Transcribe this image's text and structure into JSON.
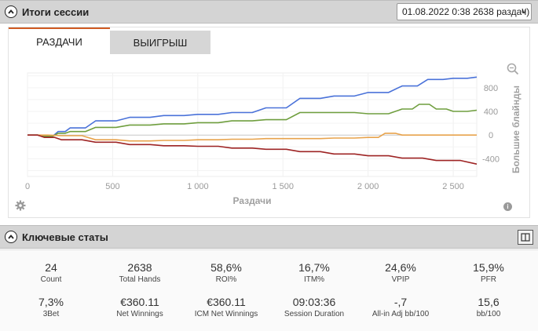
{
  "header": {
    "title": "Итоги сессии",
    "session_select": "01.08.2022 0:38 2638 раздач)",
    "caret": "v"
  },
  "tabs": [
    {
      "label": "РАЗДАЧИ",
      "active": true
    },
    {
      "label": "ВЫИГРЫШ",
      "active": false
    }
  ],
  "chart_data": {
    "type": "line",
    "xlabel": "Раздачи",
    "ylabel": "Большие блайнды",
    "x_ticks": [
      "0",
      "500",
      "1 000",
      "1 500",
      "2 000",
      "2 500"
    ],
    "y_ticks": [
      "800",
      "400",
      "0",
      "-400"
    ],
    "xlim": [
      0,
      2638
    ],
    "ylim": [
      -700,
      1050
    ],
    "grid": true,
    "series": [
      {
        "color": "#4a72d9",
        "x": [
          0,
          100,
          180,
          250,
          400,
          600,
          800,
          1000,
          1200,
          1400,
          1600,
          1800,
          2000,
          2200,
          2350,
          2500,
          2638
        ],
        "y": [
          0,
          -20,
          60,
          120,
          240,
          300,
          330,
          350,
          380,
          460,
          620,
          660,
          720,
          830,
          940,
          960,
          980
        ]
      },
      {
        "color": "#6f9e3e",
        "x": [
          0,
          100,
          180,
          250,
          400,
          600,
          800,
          1000,
          1200,
          1400,
          1600,
          1800,
          2000,
          2200,
          2300,
          2400,
          2500,
          2638
        ],
        "y": [
          0,
          -20,
          30,
          60,
          130,
          170,
          190,
          210,
          240,
          260,
          380,
          380,
          360,
          440,
          520,
          440,
          400,
          420
        ]
      },
      {
        "color": "#e8a34c",
        "x": [
          0,
          200,
          400,
          600,
          800,
          1000,
          1200,
          1400,
          1600,
          1800,
          2000,
          2100,
          2200,
          2400,
          2638
        ],
        "y": [
          0,
          -10,
          -80,
          -100,
          -90,
          -80,
          -70,
          -60,
          -60,
          -50,
          -40,
          30,
          0,
          0,
          0
        ]
      },
      {
        "color": "#9e2424",
        "x": [
          0,
          100,
          200,
          400,
          600,
          800,
          1000,
          1200,
          1400,
          1600,
          1800,
          2000,
          2200,
          2400,
          2638
        ],
        "y": [
          0,
          -40,
          -80,
          -120,
          -160,
          -180,
          -190,
          -220,
          -240,
          -280,
          -320,
          -350,
          -390,
          -430,
          -490
        ]
      }
    ]
  },
  "key_stats": {
    "title": "Ключевые статы",
    "items": [
      {
        "value": "24",
        "label": "Count"
      },
      {
        "value": "2638",
        "label": "Total Hands"
      },
      {
        "value": "58,6%",
        "label": "ROI%"
      },
      {
        "value": "16,7%",
        "label": "ITM%"
      },
      {
        "value": "24,6%",
        "label": "VPIP"
      },
      {
        "value": "15,9%",
        "label": "PFR"
      },
      {
        "value": "7,3%",
        "label": "3Bet"
      },
      {
        "value": "€360.11",
        "label": "Net Winnings"
      },
      {
        "value": "€360.11",
        "label": "ICM Net Winnings"
      },
      {
        "value": "09:03:36",
        "label": "Session Duration"
      },
      {
        "value": "-,7",
        "label": "All-in Adj bb/100"
      },
      {
        "value": "15,6",
        "label": "bb/100"
      }
    ]
  },
  "icons": {
    "collapse": "chevron-up-icon",
    "zoom": "zoom-icon",
    "settings": "gear-icon",
    "info": "info-icon",
    "info_glyph": "i",
    "panel": "panel-toggle-icon"
  }
}
